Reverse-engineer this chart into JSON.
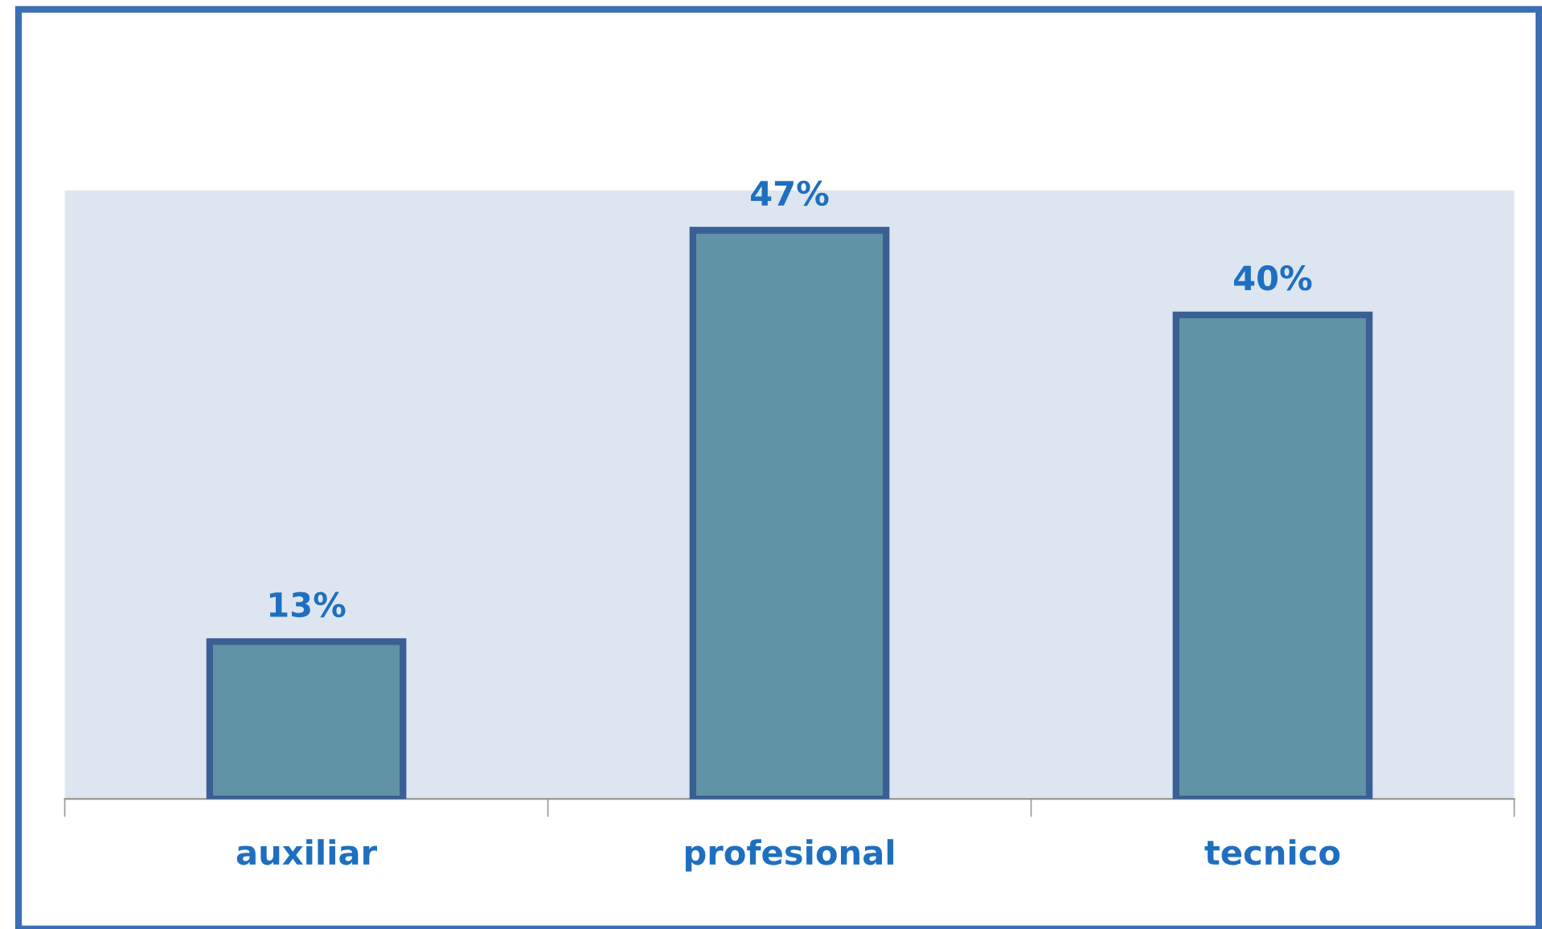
{
  "chart_data": {
    "type": "bar",
    "categories": [
      "auxiliar",
      "profesional",
      "tecnico"
    ],
    "values": [
      13,
      47,
      40
    ],
    "value_labels": [
      "13%",
      "47%",
      "40%"
    ],
    "color": "#5f93a5",
    "grid": false,
    "legend": false
  }
}
